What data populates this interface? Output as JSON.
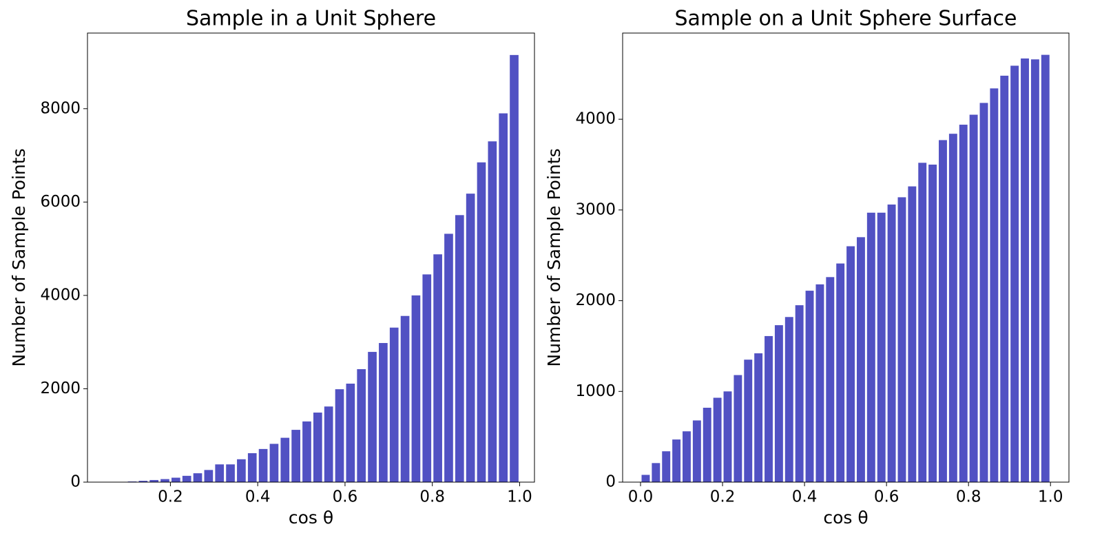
{
  "chart_data": [
    {
      "type": "bar",
      "title": "Sample in a Unit Sphere",
      "x_label": "cos θ",
      "y_label": "Number of Sample Points",
      "x": [
        0.0625,
        0.0875,
        0.1125,
        0.1375,
        0.1625,
        0.1875,
        0.2125,
        0.2375,
        0.2625,
        0.2875,
        0.3125,
        0.3375,
        0.3625,
        0.3875,
        0.4125,
        0.4375,
        0.4625,
        0.4875,
        0.5125,
        0.5375,
        0.5625,
        0.5875,
        0.6125,
        0.6375,
        0.6625,
        0.6875,
        0.7125,
        0.7375,
        0.7625,
        0.7875,
        0.8125,
        0.8375,
        0.8625,
        0.8875,
        0.9125,
        0.9375,
        0.9625,
        0.9875
      ],
      "values": [
        1,
        5,
        14,
        28,
        45,
        65,
        95,
        135,
        190,
        260,
        380,
        380,
        490,
        620,
        710,
        820,
        950,
        1120,
        1300,
        1490,
        1620,
        1990,
        2110,
        2420,
        2790,
        2980,
        3310,
        3560,
        4000,
        4450,
        4880,
        5320,
        5720,
        6180,
        6850,
        7300,
        7900,
        9150
      ],
      "color": "#5151c3",
      "xlim": [
        0.01,
        1.034
      ],
      "xticks": [
        0.2,
        0.4,
        0.6,
        0.8,
        {
          "value": 1,
          "label": "1.0"
        }
      ],
      "ylim": [
        0,
        9620
      ],
      "yticks": [
        0,
        2000,
        4000,
        6000,
        8000
      ]
    },
    {
      "type": "bar",
      "title": "Sample on a Unit Sphere Surface",
      "x_label": "cos θ",
      "y_label": "Number of Sample Points",
      "x": [
        0.0125,
        0.0375,
        0.0625,
        0.0875,
        0.1125,
        0.1375,
        0.1625,
        0.1875,
        0.2125,
        0.2375,
        0.2625,
        0.2875,
        0.3125,
        0.3375,
        0.3625,
        0.3875,
        0.4125,
        0.4375,
        0.4625,
        0.4875,
        0.5125,
        0.5375,
        0.5625,
        0.5875,
        0.6125,
        0.6375,
        0.6625,
        0.6875,
        0.7125,
        0.7375,
        0.7625,
        0.7875,
        0.8125,
        0.8375,
        0.8625,
        0.8875,
        0.9125,
        0.9375,
        0.9625,
        0.9875
      ],
      "values": [
        80,
        210,
        340,
        470,
        560,
        680,
        820,
        930,
        1000,
        1180,
        1350,
        1420,
        1610,
        1730,
        1820,
        1950,
        2110,
        2180,
        2260,
        2410,
        2600,
        2700,
        2970,
        2970,
        3060,
        3140,
        3260,
        3520,
        3500,
        3770,
        3840,
        3940,
        4050,
        4180,
        4340,
        4480,
        4590,
        4670,
        4660,
        4710
      ],
      "color": "#5151c3",
      "xlim": [
        -0.0437,
        1.045
      ],
      "xticks": [
        {
          "value": 0,
          "label": "0.0"
        },
        0.2,
        0.4,
        0.6,
        0.8,
        {
          "value": 1,
          "label": "1.0"
        }
      ],
      "ylim": [
        0,
        4950
      ],
      "yticks": [
        0,
        1000,
        2000,
        3000,
        4000
      ]
    }
  ]
}
